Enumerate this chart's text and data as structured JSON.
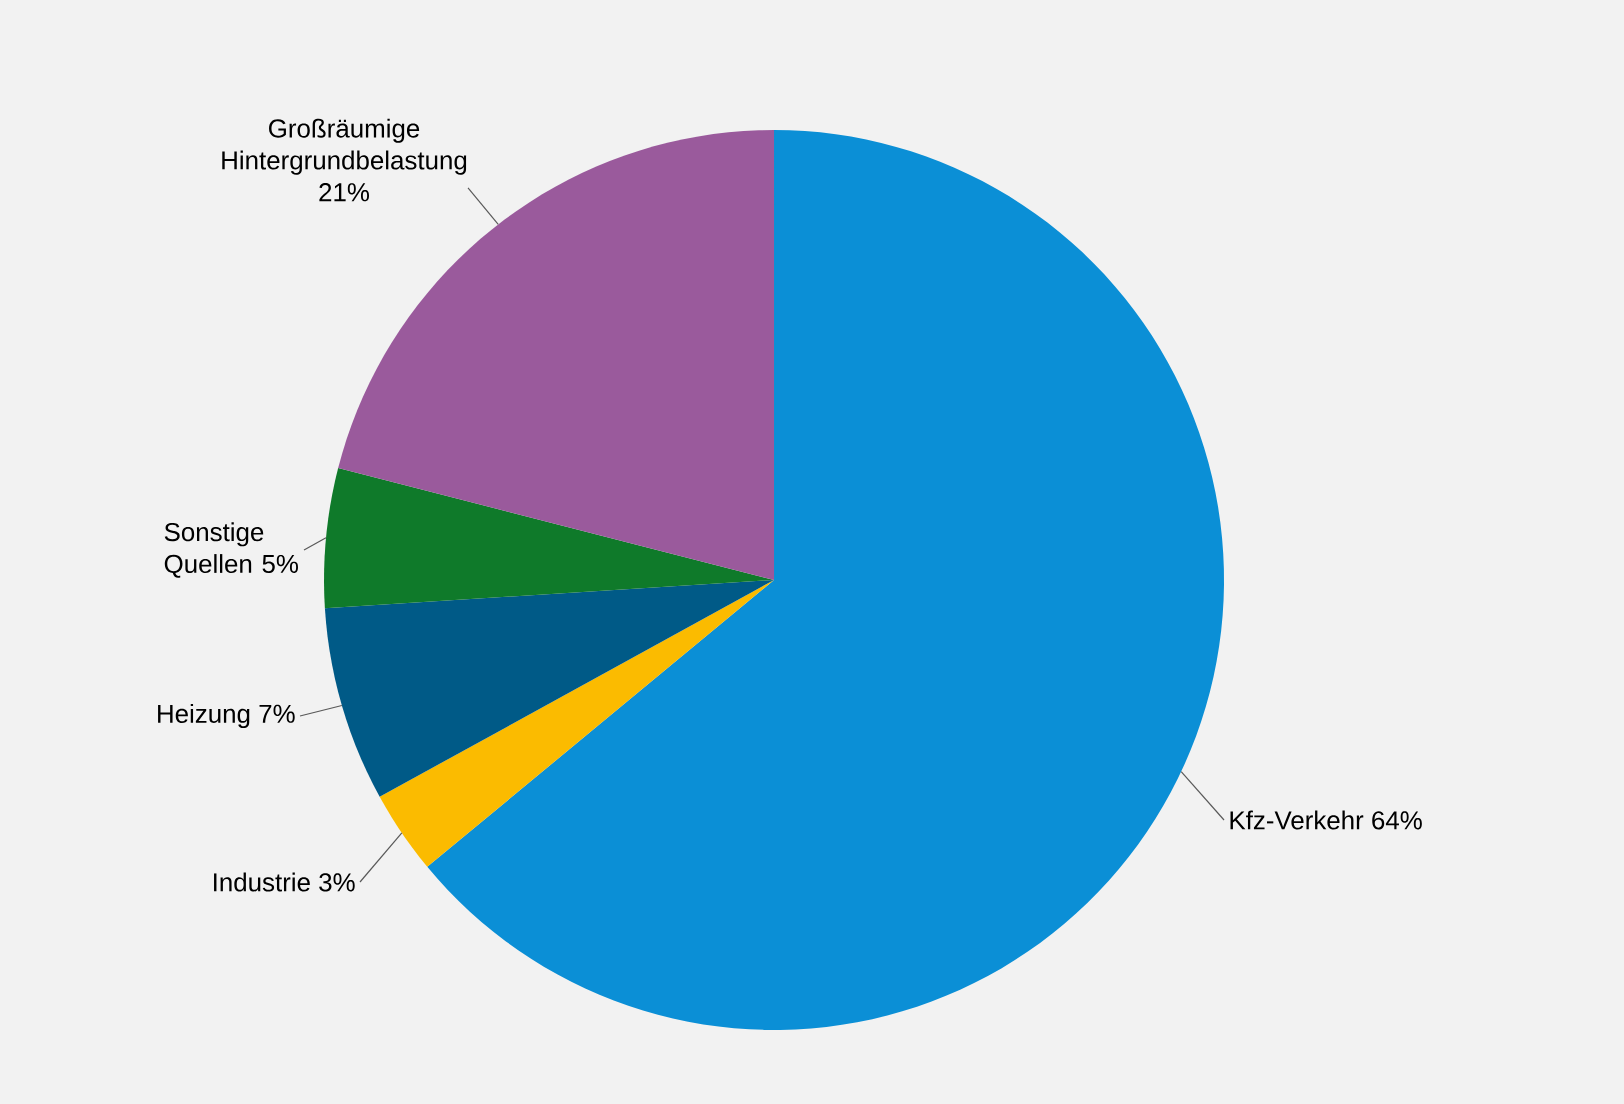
{
  "chart_data": {
    "type": "pie",
    "categories": [
      "Kfz-Verkehr",
      "Industrie",
      "Heizung",
      "Sonstige Quellen",
      "Großräumige Hintergrundbelastung"
    ],
    "values": [
      64,
      3,
      7,
      5,
      21
    ],
    "value_labels": [
      "64%",
      "3%",
      "7%",
      "5%",
      "21%"
    ],
    "colors": [
      "#0b8fd6",
      "#fbbb00",
      "#005a87",
      "#0f7a2a",
      "#9a5a9c"
    ]
  }
}
